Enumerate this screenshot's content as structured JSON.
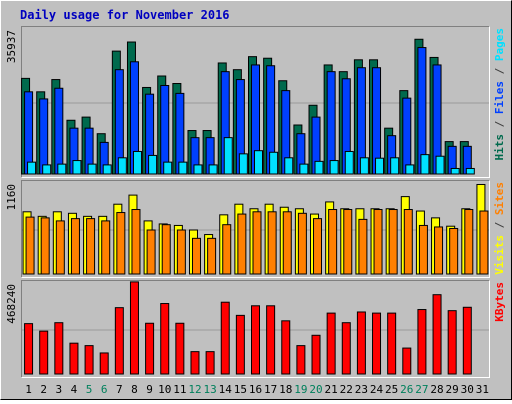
{
  "chart_data": {
    "type": "bar",
    "title": "Daily usage for November 2016",
    "colors": {
      "background": "#c0c0c0",
      "title": "#0000c0",
      "hits": "#006a4d",
      "files": "#0040ff",
      "pages": "#00e0ff",
      "visits": "#ffff00",
      "sites": "#ff8000",
      "kbytes": "#ff0000",
      "weekend_label": "#00805c",
      "weekday_label": "#000000"
    },
    "days": [
      "1",
      "2",
      "3",
      "4",
      "5",
      "6",
      "7",
      "8",
      "9",
      "10",
      "11",
      "12",
      "13",
      "14",
      "15",
      "16",
      "17",
      "18",
      "19",
      "20",
      "21",
      "22",
      "23",
      "24",
      "25",
      "26",
      "27",
      "28",
      "29",
      "30",
      "31"
    ],
    "weekend_days": [
      5,
      6,
      12,
      13,
      19,
      20,
      26,
      27
    ],
    "panels": [
      {
        "id": "hits-files-pages",
        "max_label": "35937",
        "ymax": 35937,
        "legend": [
          {
            "text": "Hits",
            "color": "#006a4d"
          },
          {
            "text": " / ",
            "color": "#404040"
          },
          {
            "text": "Files",
            "color": "#0040ff"
          },
          {
            "text": " / ",
            "color": "#404040"
          },
          {
            "text": "Pages",
            "color": "#00e0ff"
          }
        ],
        "series": [
          {
            "name": "Hits",
            "color": "#006a4d",
            "values": [
              24200,
              20800,
              23900,
              13600,
              14400,
              10200,
              31100,
              33400,
              21900,
              24800,
              22900,
              11000,
              11000,
              28100,
              26400,
              29700,
              29300,
              23600,
              12400,
              17400,
              27600,
              25900,
              28900,
              28900,
              11600,
              21100,
              34100,
              29500,
              8200,
              8200,
              0
            ]
          },
          {
            "name": "Files",
            "color": "#0040ff",
            "values": [
              20800,
              19000,
              21700,
              11600,
              11600,
              8000,
              26400,
              28400,
              20200,
              22400,
              20400,
              9200,
              9200,
              25900,
              23900,
              27600,
              27400,
              21100,
              10200,
              14400,
              25900,
              24100,
              26900,
              26900,
              9700,
              19200,
              32000,
              27600,
              7000,
              7000,
              0
            ]
          },
          {
            "name": "Pages",
            "color": "#00e0ff",
            "values": [
              3000,
              2300,
              2500,
              3400,
              2500,
              2300,
              4100,
              5700,
              4700,
              3000,
              3000,
              2300,
              2300,
              9200,
              5100,
              5900,
              5500,
              4100,
              2500,
              3200,
              3400,
              5700,
              4100,
              4000,
              4100,
              2300,
              4900,
              4500,
              1400,
              1400,
              0
            ]
          }
        ]
      },
      {
        "id": "visits-sites",
        "max_label": "1160",
        "ymax": 1160,
        "legend": [
          {
            "text": "Visits",
            "color": "#ffff00"
          },
          {
            "text": " / ",
            "color": "#404040"
          },
          {
            "text": "Sites",
            "color": "#ff8000"
          }
        ],
        "series": [
          {
            "name": "Visits",
            "color": "#ffff00",
            "values": [
              820,
              760,
              820,
              800,
              760,
              760,
              920,
              1040,
              700,
              660,
              640,
              580,
              520,
              780,
              920,
              860,
              920,
              880,
              860,
              790,
              950,
              860,
              860,
              860,
              860,
              1020,
              830,
              740,
              630,
              860,
              1180
            ]
          },
          {
            "name": "Sites",
            "color": "#ff8000",
            "values": [
              750,
              740,
              700,
              730,
              730,
              700,
              810,
              850,
              580,
              650,
              580,
              470,
              470,
              650,
              790,
              820,
              820,
              820,
              800,
              730,
              850,
              850,
              720,
              850,
              850,
              850,
              640,
              620,
              600,
              850,
              830
            ]
          }
        ]
      },
      {
        "id": "kbytes",
        "max_label": "468240",
        "ymax": 468240,
        "legend": [
          {
            "text": "KBytes",
            "color": "#ff0000"
          }
        ],
        "series": [
          {
            "name": "KBytes",
            "color": "#ff0000",
            "values": [
              268000,
              228000,
              273000,
              164000,
              151000,
              112000,
              353000,
              490000,
              270000,
              375000,
              270000,
              119000,
              119000,
              382000,
              312000,
              363000,
              363000,
              283000,
              151000,
              206000,
              324000,
              273000,
              330000,
              324000,
              324000,
              138000,
              343000,
              422000,
              337000,
              355000,
              0
            ]
          }
        ]
      }
    ]
  }
}
